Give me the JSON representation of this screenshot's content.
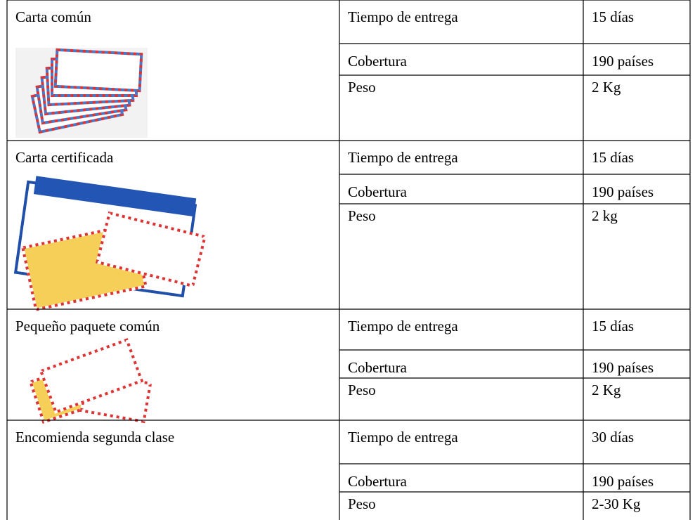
{
  "rows": [
    {
      "service": "Carta común",
      "details": [
        [
          "Tiempo de entrega",
          "15 días"
        ],
        [
          "Cobertura",
          "190 países"
        ],
        [
          "Peso",
          "2 Kg"
        ]
      ]
    },
    {
      "service": "Carta certificada",
      "details": [
        [
          "Tiempo de entrega",
          "15 días"
        ],
        [
          "Cobertura",
          "190 países"
        ],
        [
          "Peso",
          "2 kg"
        ]
      ]
    },
    {
      "service": "Pequeño paquete común",
      "details": [
        [
          "Tiempo de entrega",
          "15 días"
        ],
        [
          "Cobertura",
          "190 países"
        ],
        [
          "Peso",
          "2 Kg"
        ]
      ]
    },
    {
      "service": "Encomienda segunda clase",
      "details": [
        [
          "Tiempo de entrega",
          "30 días"
        ],
        [
          "Cobertura",
          "190 países"
        ],
        [
          "Peso",
          "2-30 Kg"
        ]
      ]
    }
  ]
}
